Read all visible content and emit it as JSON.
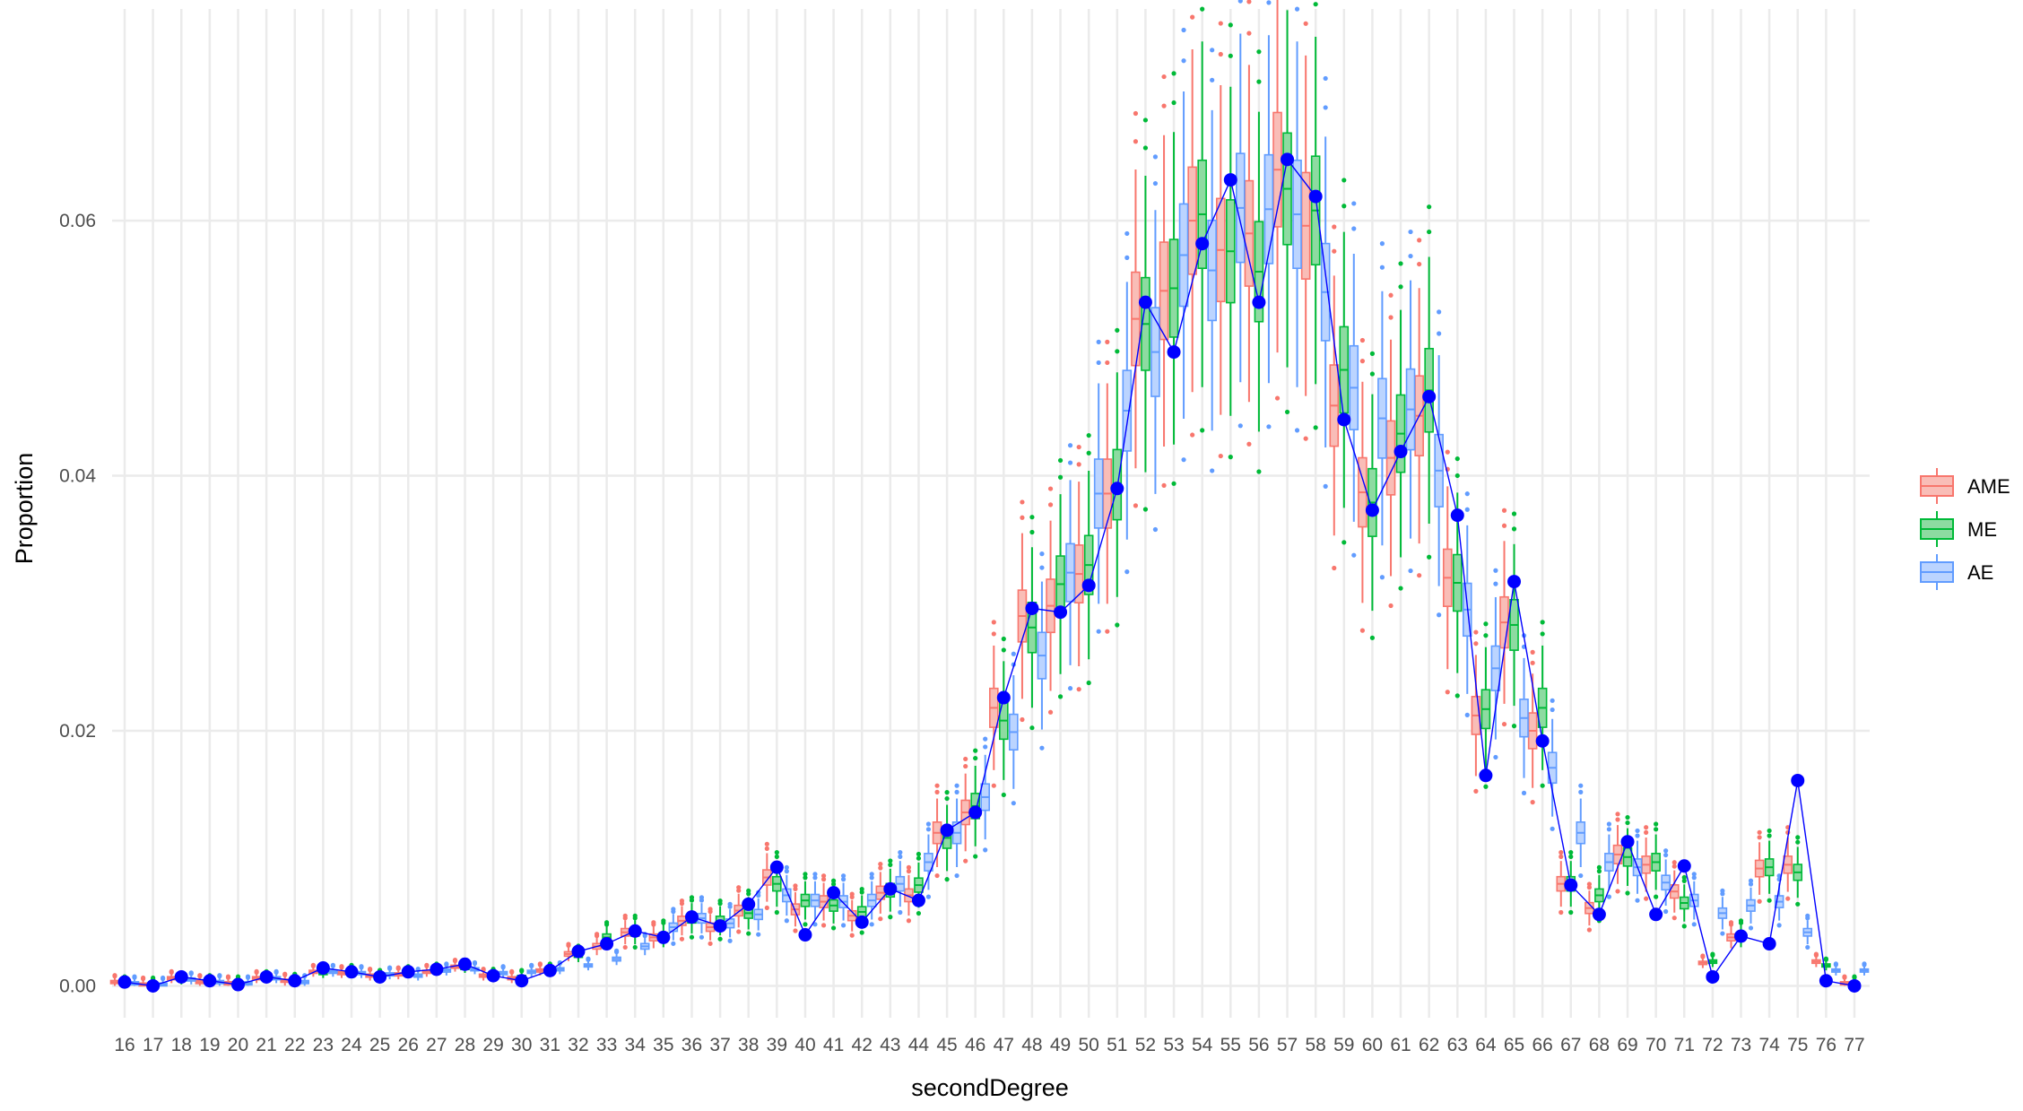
{
  "chart_data": {
    "type": "box",
    "title": "",
    "xlabel": "secondDegree",
    "ylabel": "Proportion",
    "ylim": [
      -0.0025,
      0.0766
    ],
    "yticks": [
      0.0,
      0.02,
      0.04,
      0.06
    ],
    "ytick_labels": [
      "0.00",
      "0.02",
      "0.04",
      "0.06"
    ],
    "grid": true,
    "legend_position": "right",
    "categories": [
      "16",
      "17",
      "18",
      "19",
      "20",
      "21",
      "22",
      "23",
      "24",
      "25",
      "26",
      "27",
      "28",
      "29",
      "30",
      "31",
      "32",
      "33",
      "34",
      "35",
      "36",
      "37",
      "38",
      "39",
      "40",
      "41",
      "42",
      "43",
      "44",
      "45",
      "46",
      "47",
      "48",
      "49",
      "50",
      "51",
      "52",
      "53",
      "54",
      "55",
      "56",
      "57",
      "58",
      "59",
      "60",
      "61",
      "62",
      "63",
      "64",
      "65",
      "66",
      "67",
      "68",
      "69",
      "70",
      "71",
      "72",
      "73",
      "74",
      "75",
      "76",
      "77"
    ],
    "series": [
      {
        "name": "AME",
        "color": "#F8766D",
        "fill": "#F9BDB7",
        "medians": [
          0.0003,
          0.0001,
          0.0006,
          0.0003,
          0.0002,
          0.0006,
          0.0004,
          0.0011,
          0.001,
          0.0008,
          0.0009,
          0.0011,
          0.0015,
          0.0008,
          0.0006,
          0.0012,
          0.0025,
          0.0031,
          0.0042,
          0.0038,
          0.0051,
          0.0046,
          0.0059,
          0.0085,
          0.006,
          0.0066,
          0.0055,
          0.0073,
          0.0071,
          0.012,
          0.0136,
          0.0218,
          0.029,
          0.0298,
          0.0323,
          0.0386,
          0.0523,
          0.0545,
          0.06,
          0.0577,
          0.059,
          0.064,
          0.0596,
          0.0455,
          0.0387,
          0.0414,
          0.0447,
          0.032,
          0.0212,
          0.0285,
          0.02,
          0.008,
          0.0061,
          0.0103,
          0.0095,
          0.0074,
          0.0018,
          0.0038,
          0.0092,
          0.0095,
          0.0019,
          0.0002
        ]
      },
      {
        "name": "ME",
        "color": "#00BA38",
        "fill": "#8DDBA1",
        "medians": [
          0.0002,
          0.0001,
          0.0005,
          0.0003,
          0.0002,
          0.0006,
          0.0004,
          0.001,
          0.0011,
          0.0007,
          0.001,
          0.0012,
          0.0014,
          0.0008,
          0.0007,
          0.0012,
          0.0024,
          0.0038,
          0.0042,
          0.0039,
          0.0053,
          0.0051,
          0.0057,
          0.008,
          0.0067,
          0.0063,
          0.0058,
          0.0075,
          0.0079,
          0.0116,
          0.0141,
          0.0208,
          0.0281,
          0.0315,
          0.033,
          0.0393,
          0.0519,
          0.0547,
          0.0605,
          0.0576,
          0.056,
          0.0625,
          0.0608,
          0.0483,
          0.0379,
          0.0433,
          0.0467,
          0.0316,
          0.0217,
          0.0283,
          0.0218,
          0.008,
          0.0071,
          0.0101,
          0.0097,
          0.0065,
          0.0019,
          0.0039,
          0.0093,
          0.0089,
          0.0016,
          0.0002
        ]
      },
      {
        "name": "AE",
        "color": "#619CFF",
        "fill": "#BBD4FF",
        "medians": [
          0.0002,
          0.0001,
          0.0005,
          0.0003,
          0.0002,
          0.0006,
          0.0003,
          0.0011,
          0.001,
          0.0009,
          0.0008,
          0.0012,
          0.0013,
          0.001,
          0.0011,
          0.0013,
          0.0016,
          0.0021,
          0.0031,
          0.0046,
          0.0053,
          0.0049,
          0.0056,
          0.0071,
          0.0067,
          0.0066,
          0.0067,
          0.008,
          0.0097,
          0.012,
          0.0148,
          0.0199,
          0.0259,
          0.0324,
          0.0386,
          0.0451,
          0.0497,
          0.0573,
          0.0561,
          0.061,
          0.0609,
          0.0605,
          0.0544,
          0.0469,
          0.0445,
          0.0452,
          0.0404,
          0.0295,
          0.0249,
          0.021,
          0.0171,
          0.012,
          0.0097,
          0.0093,
          0.0081,
          0.0067,
          0.0057,
          0.0063,
          0.0066,
          0.0042,
          0.0012,
          0.0012
        ]
      }
    ],
    "line_series": {
      "name": "",
      "color": "#0000FF",
      "values": [
        0.0003,
        0.0,
        0.0007,
        0.0004,
        0.0001,
        0.0007,
        0.0004,
        0.0014,
        0.0011,
        0.0007,
        0.0011,
        0.0013,
        0.0017,
        0.0008,
        0.0004,
        0.0012,
        0.0027,
        0.0033,
        0.0043,
        0.0038,
        0.0054,
        0.0047,
        0.0064,
        0.0093,
        0.004,
        0.0073,
        0.005,
        0.0076,
        0.0067,
        0.0122,
        0.0136,
        0.0226,
        0.0296,
        0.0293,
        0.0314,
        0.039,
        0.0536,
        0.0497,
        0.0582,
        0.0632,
        0.0536,
        0.0648,
        0.0619,
        0.0444,
        0.0373,
        0.0419,
        0.0462,
        0.0369,
        0.0165,
        0.0317,
        0.0192,
        0.0079,
        0.0056,
        0.0113,
        0.0056,
        0.0094,
        0.0007,
        0.0039,
        0.0033,
        0.0161,
        0.0004,
        0.0
      ]
    }
  }
}
